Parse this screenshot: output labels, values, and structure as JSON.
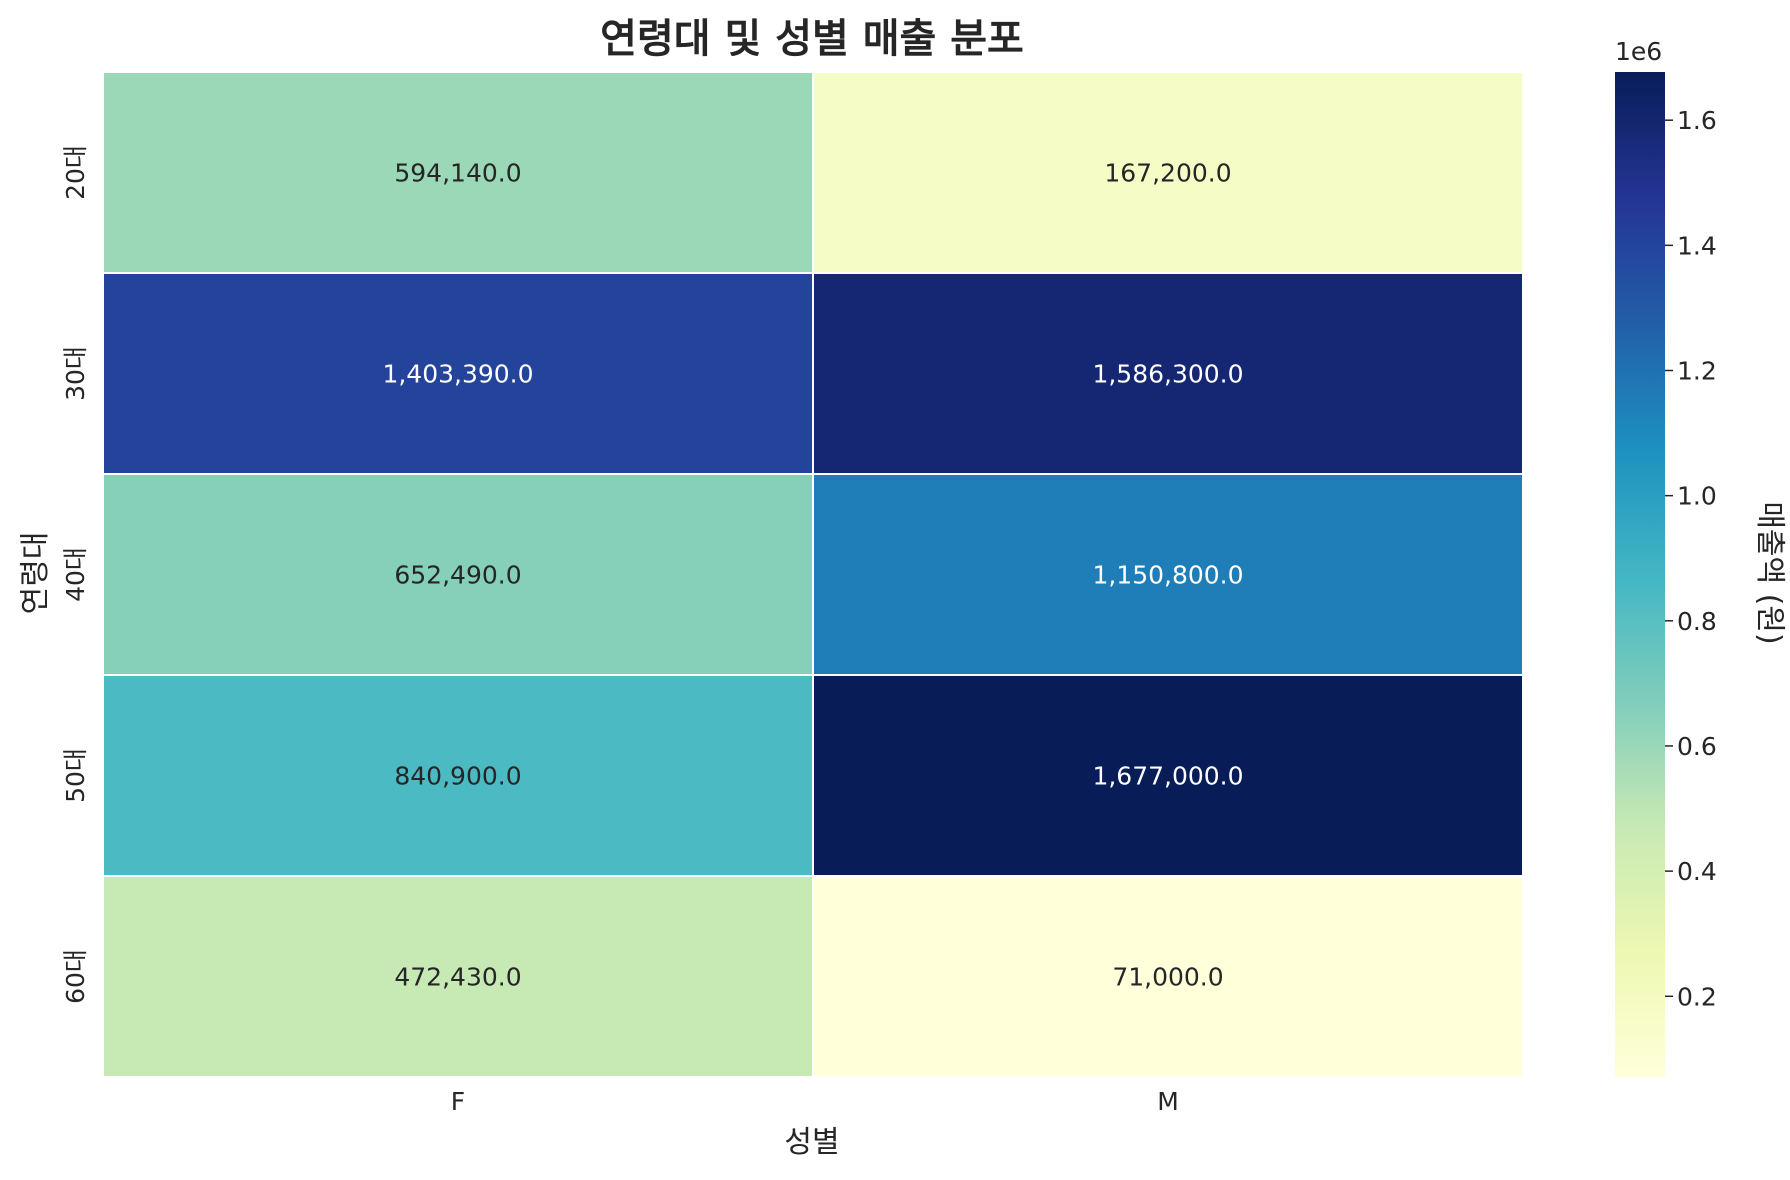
{
  "chart_data": {
    "type": "heatmap",
    "title": "연령대 및 성별 매출 분포",
    "xlabel": "성별",
    "ylabel": "연령대",
    "x_categories": [
      "F",
      "M"
    ],
    "y_categories": [
      "20대",
      "30대",
      "40대",
      "50대",
      "60대"
    ],
    "values": [
      [
        594140.0,
        167200.0
      ],
      [
        1403390.0,
        1586300.0
      ],
      [
        652490.0,
        1150800.0
      ],
      [
        840900.0,
        1677000.0
      ],
      [
        472430.0,
        71000.0
      ]
    ],
    "value_labels": [
      [
        "594,140.0",
        "167,200.0"
      ],
      [
        "1,403,390.0",
        "1,586,300.0"
      ],
      [
        "652,490.0",
        "1,150,800.0"
      ],
      [
        "840,900.0",
        "1,677,000.0"
      ],
      [
        "472,430.0",
        "71,000.0"
      ]
    ],
    "colormap": "YlGnBu",
    "vmin": 71000.0,
    "vmax": 1677000.0,
    "colorbar": {
      "label": "매출액 (원)",
      "offset_text": "1e6",
      "ticks": [
        0.2,
        0.4,
        0.6,
        0.8,
        1.0,
        1.2,
        1.4,
        1.6
      ],
      "tick_labels": [
        "0.2",
        "0.4",
        "0.6",
        "0.8",
        "1.0",
        "1.2",
        "1.4",
        "1.6"
      ],
      "tick_scale": 1000000
    },
    "colormap_stops": [
      "#ffffd9",
      "#edf8b1",
      "#c7e9b4",
      "#7fcdbb",
      "#41b6c4",
      "#1d91c0",
      "#225ea8",
      "#253494",
      "#081d58"
    ],
    "label_color_dark": "#262626",
    "label_color_light": "#ffffff"
  }
}
